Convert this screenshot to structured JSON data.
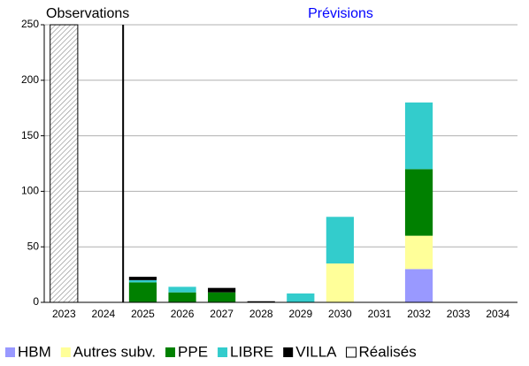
{
  "chart_data": {
    "type": "stacked-bar",
    "observations_label": "Observations",
    "forecast_label": "Prévisions",
    "categories": [
      "2023",
      "2024",
      "2025",
      "2026",
      "2027",
      "2028",
      "2029",
      "2030",
      "2031",
      "2032",
      "2033",
      "2034"
    ],
    "series": [
      {
        "name": "HBM",
        "color": "#9999ff",
        "values": [
          null,
          null,
          null,
          null,
          null,
          null,
          null,
          null,
          null,
          30,
          null,
          null
        ]
      },
      {
        "name": "Autres subv.",
        "color": "#ffff99",
        "values": [
          null,
          null,
          null,
          null,
          null,
          null,
          null,
          35,
          null,
          30,
          null,
          null
        ]
      },
      {
        "name": "PPE",
        "color": "#008000",
        "values": [
          null,
          null,
          18,
          9,
          9,
          null,
          null,
          null,
          null,
          60,
          null,
          null
        ]
      },
      {
        "name": "LIBRE",
        "color": "#33cccc",
        "values": [
          null,
          null,
          2,
          5,
          null,
          null,
          8,
          42,
          null,
          60,
          null,
          null
        ]
      },
      {
        "name": "VILLA",
        "color": "#000000",
        "values": [
          null,
          null,
          3,
          null,
          4,
          1,
          null,
          null,
          null,
          null,
          null,
          null
        ]
      },
      {
        "name": "Réalisés",
        "color": "#ffffff",
        "hatch": true,
        "values": [
          250,
          null,
          null,
          null,
          null,
          null,
          null,
          null,
          null,
          null,
          null,
          null
        ]
      }
    ],
    "ylim": [
      0,
      250
    ],
    "yticks": [
      0,
      50,
      100,
      150,
      200,
      250
    ],
    "grid": true
  }
}
